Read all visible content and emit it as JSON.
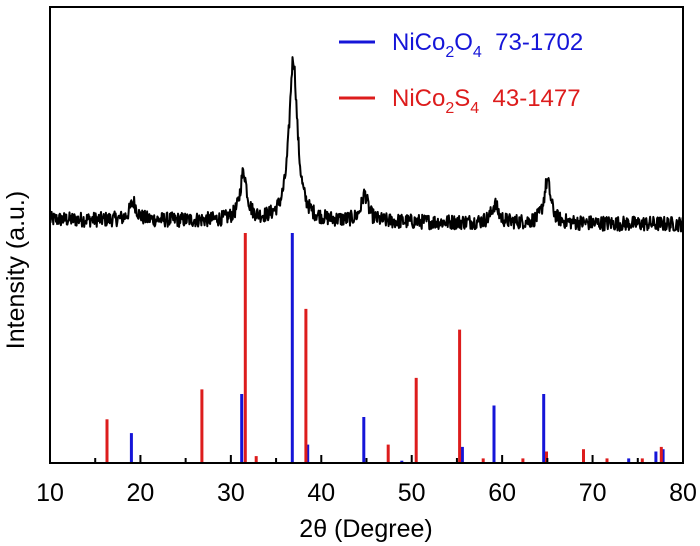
{
  "chart_data": {
    "type": "line",
    "xlabel": "2θ (Degree)",
    "ylabel": "Intensity (a.u.)",
    "xlim": [
      10,
      80
    ],
    "x_ticks": [
      "10",
      "20",
      "30",
      "40",
      "50",
      "60",
      "70",
      "80"
    ],
    "grid": false,
    "legend_position": "top-right",
    "series": [
      {
        "kind": "pattern",
        "color": "#000000",
        "peaks": [
          {
            "x": 19.2,
            "height": 0.06
          },
          {
            "x": 31.4,
            "height": 0.16
          },
          {
            "x": 36.9,
            "height": 0.54
          },
          {
            "x": 44.8,
            "height": 0.09
          },
          {
            "x": 59.2,
            "height": 0.06
          },
          {
            "x": 65.0,
            "height": 0.14
          }
        ]
      },
      {
        "kind": "reference",
        "name": "NiCo2O4 73-1702",
        "formula_parts": [
          "NiCo",
          "2",
          "O",
          "4"
        ],
        "card": "73-1702",
        "color": "#1515d8",
        "x": [
          19.0,
          31.2,
          36.8,
          38.5,
          44.7,
          48.9,
          55.6,
          59.1,
          64.6,
          74.0,
          77.0,
          77.8
        ],
        "values": [
          13,
          30,
          100,
          8,
          20,
          1,
          7,
          25,
          30,
          2,
          5,
          6
        ]
      },
      {
        "kind": "reference",
        "name": "NiCo2S4 43-1477",
        "formula_parts": [
          "NiCo",
          "2",
          "S",
          "4"
        ],
        "card": "43-1477",
        "color": "#dd1c1c",
        "x": [
          16.3,
          26.8,
          31.6,
          32.8,
          38.3,
          47.4,
          50.5,
          55.3,
          57.9,
          62.3,
          64.9,
          69.0,
          71.6,
          75.5,
          77.6
        ],
        "values": [
          19,
          32,
          100,
          3,
          67,
          8,
          37,
          58,
          2,
          2,
          5,
          6,
          2,
          2,
          7
        ]
      }
    ]
  }
}
